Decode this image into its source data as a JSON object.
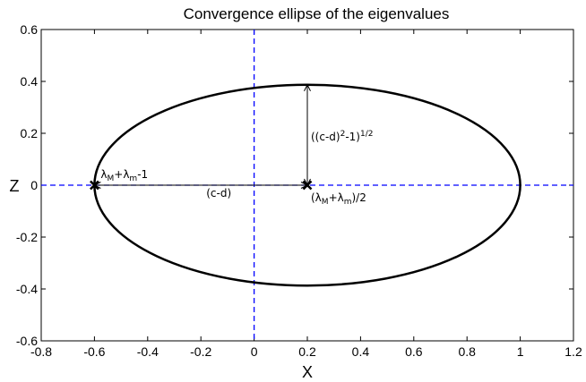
{
  "chart_data": {
    "type": "line",
    "title": "Convergence ellipse of the eigenvalues",
    "xlabel": "X",
    "ylabel": "Z",
    "xlim": [
      -0.8,
      1.2
    ],
    "ylim": [
      -0.6,
      0.6
    ],
    "xticks": [
      "-0.8",
      "-0.6",
      "-0.4",
      "-0.2",
      "0",
      "0.2",
      "0.4",
      "0.6",
      "0.8",
      "1",
      "1.2"
    ],
    "yticks": [
      "-0.6",
      "-0.4",
      "-0.2",
      "0",
      "0.2",
      "0.4",
      "0.6"
    ],
    "grid": false,
    "ellipse": {
      "center": [
        0.2,
        0
      ],
      "semi_x": 0.8,
      "semi_z": 0.387
    },
    "reference_lines": {
      "x": 0,
      "z": 0,
      "color": "#0000ff",
      "style": "dashed"
    },
    "markers": [
      {
        "x": -0.6,
        "z": 0,
        "symbol": "x"
      },
      {
        "x": 0.2,
        "z": 0,
        "symbol": "x"
      }
    ],
    "arrows": [
      {
        "from": [
          -0.6,
          0
        ],
        "to": [
          0.2,
          0
        ],
        "both_ends": true
      },
      {
        "from": [
          0.2,
          0
        ],
        "to": [
          0.2,
          0.387
        ],
        "both_ends": true
      }
    ],
    "annotations": {
      "left_point_parts": [
        "λ",
        "M",
        "+λ",
        "m",
        "-1"
      ],
      "center_point_parts": [
        "(λ",
        "M",
        "+λ",
        "m",
        ")/2"
      ],
      "horizontal_distance": "(c-d)",
      "vertical_parts": [
        "((c-d)",
        "2",
        "-1)",
        "1/2"
      ]
    },
    "colors": {
      "ellipse": "#000000",
      "axes_lines": "#0000ff"
    }
  }
}
